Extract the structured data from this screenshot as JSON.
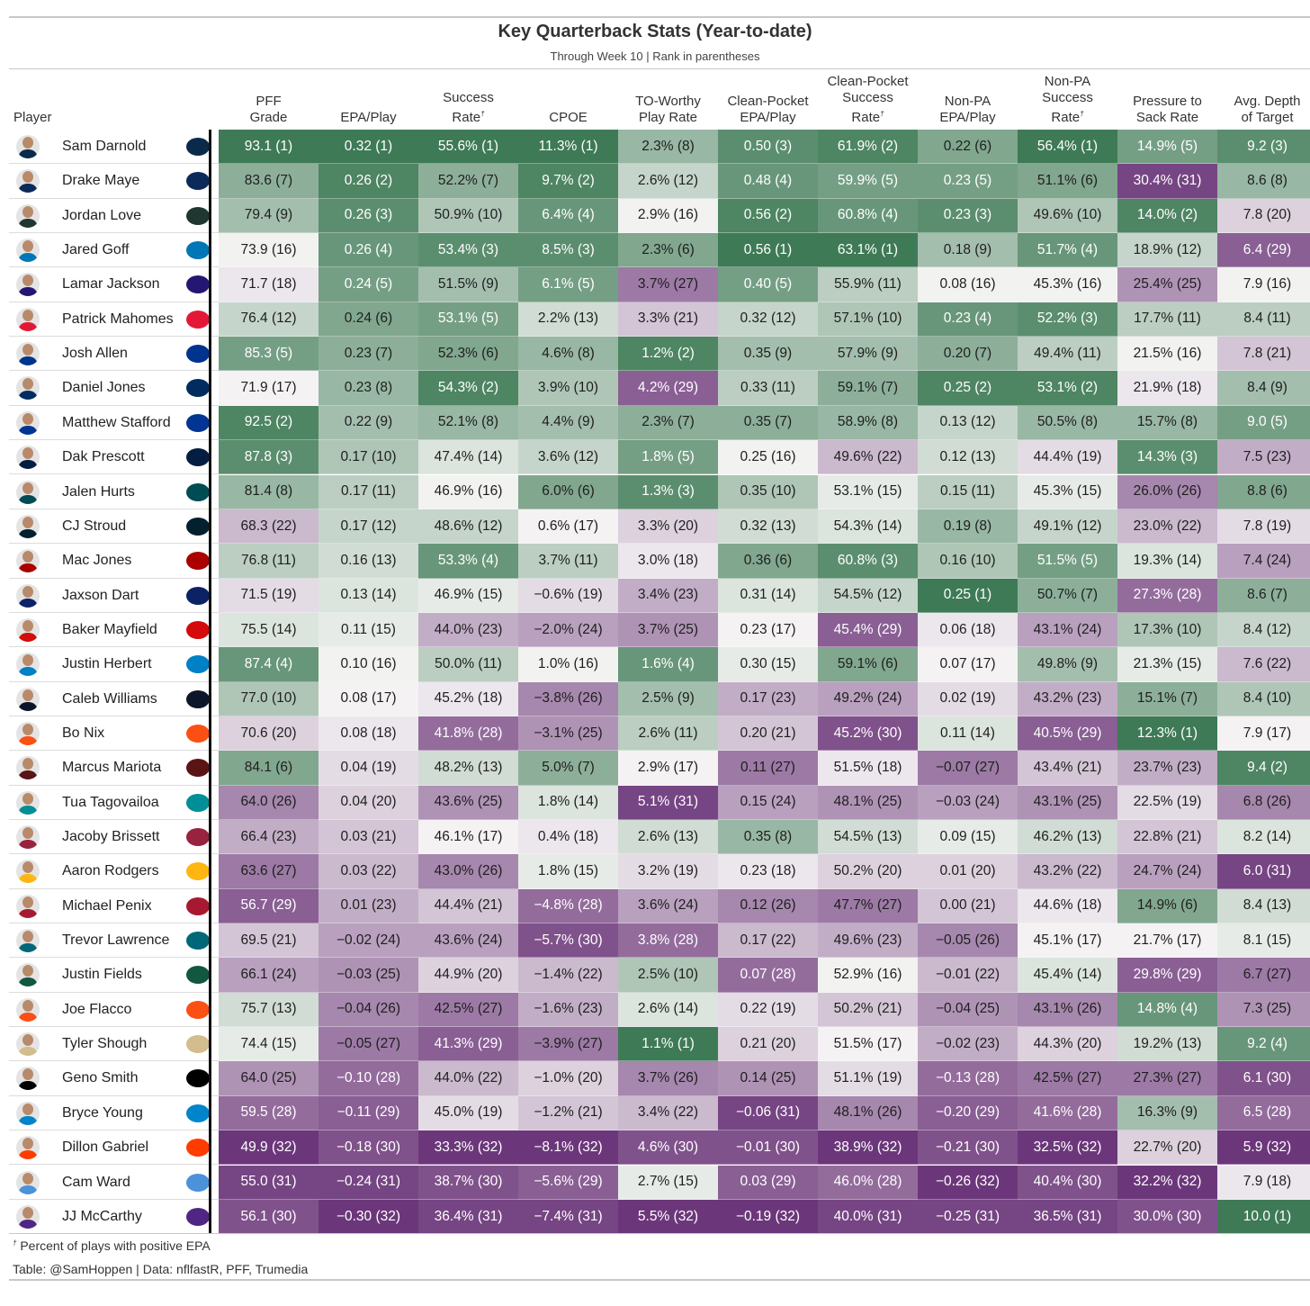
{
  "title": "Key Quarterback Stats (Year-to-date)",
  "subtitle": "Through Week 10 | Rank in parentheses",
  "footnote_mark": "†",
  "footnote": "Percent of plays with positive EPA",
  "credit": "Table: @SamHoppen | Data: nflfastR, PFF, Trumedia",
  "columns": [
    {
      "lines": [
        "Player"
      ],
      "dagger": false
    },
    {
      "lines": [
        "PFF",
        "Grade"
      ],
      "dagger": false
    },
    {
      "lines": [
        "EPA/Play"
      ],
      "dagger": false
    },
    {
      "lines": [
        "Success",
        "Rate"
      ],
      "dagger": true
    },
    {
      "lines": [
        "CPOE"
      ],
      "dagger": false
    },
    {
      "lines": [
        "TO-Worthy",
        "Play Rate"
      ],
      "dagger": false
    },
    {
      "lines": [
        "Clean-Pocket",
        "EPA/Play"
      ],
      "dagger": false
    },
    {
      "lines": [
        "Clean-Pocket",
        "Success",
        "Rate"
      ],
      "dagger": true
    },
    {
      "lines": [
        "Non-PA",
        "EPA/Play"
      ],
      "dagger": false
    },
    {
      "lines": [
        "Non-PA",
        "Success",
        "Rate"
      ],
      "dagger": true
    },
    {
      "lines": [
        "Pressure to",
        "Sack Rate"
      ],
      "dagger": false
    },
    {
      "lines": [
        "Avg. Depth",
        "of Target"
      ],
      "dagger": false
    }
  ],
  "chart_data": {
    "type": "table",
    "rank_note": "lower rank number = better; cell color green (good) to purple (bad)",
    "rows": [
      {
        "player": "Sam Darnold",
        "team_color": "#0b2a4a",
        "values": [
          "93.1 (1)",
          "0.32 (1)",
          "55.6% (1)",
          "11.3% (1)",
          "2.3% (8)",
          "0.50 (3)",
          "61.9% (2)",
          "0.22 (6)",
          "56.4% (1)",
          "14.9% (5)",
          "9.2 (3)"
        ]
      },
      {
        "player": "Drake Maye",
        "team_color": "#0b2a5a",
        "values": [
          "83.6 (7)",
          "0.26 (2)",
          "52.2% (7)",
          "9.7% (2)",
          "2.6% (12)",
          "0.48 (4)",
          "59.9% (5)",
          "0.23 (5)",
          "51.1% (6)",
          "30.4% (31)",
          "8.6 (8)"
        ]
      },
      {
        "player": "Jordan Love",
        "team_color": "#203731",
        "values": [
          "79.4 (9)",
          "0.26 (3)",
          "50.9% (10)",
          "6.4% (4)",
          "2.9% (16)",
          "0.56 (2)",
          "60.8% (4)",
          "0.23 (3)",
          "49.6% (10)",
          "14.0% (2)",
          "7.8 (20)"
        ]
      },
      {
        "player": "Jared Goff",
        "team_color": "#0076b6",
        "values": [
          "73.9 (16)",
          "0.26 (4)",
          "53.4% (3)",
          "8.5% (3)",
          "2.3% (6)",
          "0.56 (1)",
          "63.1% (1)",
          "0.18 (9)",
          "51.7% (4)",
          "18.9% (12)",
          "6.4 (29)"
        ]
      },
      {
        "player": "Lamar Jackson",
        "team_color": "#241773",
        "values": [
          "71.7 (18)",
          "0.24 (5)",
          "51.5% (9)",
          "6.1% (5)",
          "3.7% (27)",
          "0.40 (5)",
          "55.9% (11)",
          "0.08 (16)",
          "45.3% (16)",
          "25.4% (25)",
          "7.9 (16)"
        ]
      },
      {
        "player": "Patrick Mahomes",
        "team_color": "#e31837",
        "values": [
          "76.4 (12)",
          "0.24 (6)",
          "53.1% (5)",
          "2.2% (13)",
          "3.3% (21)",
          "0.32 (12)",
          "57.1% (10)",
          "0.23 (4)",
          "52.2% (3)",
          "17.7% (11)",
          "8.4 (11)"
        ]
      },
      {
        "player": "Josh Allen",
        "team_color": "#00338d",
        "values": [
          "85.3 (5)",
          "0.23 (7)",
          "52.3% (6)",
          "4.6% (8)",
          "1.2% (2)",
          "0.35 (9)",
          "57.9% (9)",
          "0.20 (7)",
          "49.4% (11)",
          "21.5% (16)",
          "7.8 (21)"
        ]
      },
      {
        "player": "Daniel Jones",
        "team_color": "#002c5f",
        "values": [
          "71.9 (17)",
          "0.23 (8)",
          "54.3% (2)",
          "3.9% (10)",
          "4.2% (29)",
          "0.33 (11)",
          "59.1% (7)",
          "0.25 (2)",
          "53.1% (2)",
          "21.9% (18)",
          "8.4 (9)"
        ]
      },
      {
        "player": "Matthew Stafford",
        "team_color": "#003594",
        "values": [
          "92.5 (2)",
          "0.22 (9)",
          "52.1% (8)",
          "4.4% (9)",
          "2.3% (7)",
          "0.35 (7)",
          "58.9% (8)",
          "0.13 (12)",
          "50.5% (8)",
          "15.7% (8)",
          "9.0 (5)"
        ]
      },
      {
        "player": "Dak Prescott",
        "team_color": "#041e42",
        "values": [
          "87.8 (3)",
          "0.17 (10)",
          "47.4% (14)",
          "3.6% (12)",
          "1.8% (5)",
          "0.25 (16)",
          "49.6% (22)",
          "0.12 (13)",
          "44.4% (19)",
          "14.3% (3)",
          "7.5 (23)"
        ]
      },
      {
        "player": "Jalen Hurts",
        "team_color": "#004c54",
        "values": [
          "81.4 (8)",
          "0.17 (11)",
          "46.9% (16)",
          "6.0% (6)",
          "1.3% (3)",
          "0.35 (10)",
          "53.1% (15)",
          "0.15 (11)",
          "45.3% (15)",
          "26.0% (26)",
          "8.8 (6)"
        ]
      },
      {
        "player": "CJ Stroud",
        "team_color": "#03202f",
        "values": [
          "68.3 (22)",
          "0.17 (12)",
          "48.6% (12)",
          "0.6% (17)",
          "3.3% (20)",
          "0.32 (13)",
          "54.3% (14)",
          "0.19 (8)",
          "49.1% (12)",
          "23.0% (22)",
          "7.8 (19)"
        ]
      },
      {
        "player": "Mac Jones",
        "team_color": "#aa0000",
        "values": [
          "76.8 (11)",
          "0.16 (13)",
          "53.3% (4)",
          "3.7% (11)",
          "3.0% (18)",
          "0.36 (6)",
          "60.8% (3)",
          "0.16 (10)",
          "51.5% (5)",
          "19.3% (14)",
          "7.4 (24)"
        ]
      },
      {
        "player": "Jaxson Dart",
        "team_color": "#0b2265",
        "values": [
          "71.5 (19)",
          "0.13 (14)",
          "46.9% (15)",
          "−0.6% (19)",
          "3.4% (23)",
          "0.31 (14)",
          "54.5% (12)",
          "0.25 (1)",
          "50.7% (7)",
          "27.3% (28)",
          "8.6 (7)"
        ]
      },
      {
        "player": "Baker Mayfield",
        "team_color": "#d50a0a",
        "values": [
          "75.5 (14)",
          "0.11 (15)",
          "44.0% (23)",
          "−2.0% (24)",
          "3.7% (25)",
          "0.23 (17)",
          "45.4% (29)",
          "0.06 (18)",
          "43.1% (24)",
          "17.3% (10)",
          "8.4 (12)"
        ]
      },
      {
        "player": "Justin Herbert",
        "team_color": "#0080c6",
        "values": [
          "87.4 (4)",
          "0.10 (16)",
          "50.0% (11)",
          "1.0% (16)",
          "1.6% (4)",
          "0.30 (15)",
          "59.1% (6)",
          "0.07 (17)",
          "49.8% (9)",
          "21.3% (15)",
          "7.6 (22)"
        ]
      },
      {
        "player": "Caleb Williams",
        "team_color": "#0b162a",
        "values": [
          "77.0 (10)",
          "0.08 (17)",
          "45.2% (18)",
          "−3.8% (26)",
          "2.5% (9)",
          "0.17 (23)",
          "49.2% (24)",
          "0.02 (19)",
          "43.2% (23)",
          "15.1% (7)",
          "8.4 (10)"
        ]
      },
      {
        "player": "Bo Nix",
        "team_color": "#fb4f14",
        "values": [
          "70.6 (20)",
          "0.08 (18)",
          "41.8% (28)",
          "−3.1% (25)",
          "2.6% (11)",
          "0.20 (21)",
          "45.2% (30)",
          "0.11 (14)",
          "40.5% (29)",
          "12.3% (1)",
          "7.9 (17)"
        ]
      },
      {
        "player": "Marcus Mariota",
        "team_color": "#5a1414",
        "values": [
          "84.1 (6)",
          "0.04 (19)",
          "48.2% (13)",
          "5.0% (7)",
          "2.9% (17)",
          "0.11 (27)",
          "51.5% (18)",
          "−0.07 (27)",
          "43.4% (21)",
          "23.7% (23)",
          "9.4 (2)"
        ]
      },
      {
        "player": "Tua Tagovailoa",
        "team_color": "#008e97",
        "values": [
          "64.0 (26)",
          "0.04 (20)",
          "43.6% (25)",
          "1.8% (14)",
          "5.1% (31)",
          "0.15 (24)",
          "48.1% (25)",
          "−0.03 (24)",
          "43.1% (25)",
          "22.5% (19)",
          "6.8 (26)"
        ]
      },
      {
        "player": "Jacoby Brissett",
        "team_color": "#97233f",
        "values": [
          "66.4 (23)",
          "0.03 (21)",
          "46.1% (17)",
          "0.4% (18)",
          "2.6% (13)",
          "0.35 (8)",
          "54.5% (13)",
          "0.09 (15)",
          "46.2% (13)",
          "22.8% (21)",
          "8.2 (14)"
        ]
      },
      {
        "player": "Aaron Rodgers",
        "team_color": "#ffb612",
        "values": [
          "63.6 (27)",
          "0.03 (22)",
          "43.0% (26)",
          "1.8% (15)",
          "3.2% (19)",
          "0.23 (18)",
          "50.2% (20)",
          "0.01 (20)",
          "43.2% (22)",
          "24.7% (24)",
          "6.0 (31)"
        ]
      },
      {
        "player": "Michael Penix",
        "team_color": "#a71930",
        "values": [
          "56.7 (29)",
          "0.01 (23)",
          "44.4% (21)",
          "−4.8% (28)",
          "3.6% (24)",
          "0.12 (26)",
          "47.7% (27)",
          "0.00 (21)",
          "44.6% (18)",
          "14.9% (6)",
          "8.4 (13)"
        ]
      },
      {
        "player": "Trevor Lawrence",
        "team_color": "#006778",
        "values": [
          "69.5 (21)",
          "−0.02 (24)",
          "43.6% (24)",
          "−5.7% (30)",
          "3.8% (28)",
          "0.17 (22)",
          "49.6% (23)",
          "−0.05 (26)",
          "45.1% (17)",
          "21.7% (17)",
          "8.1 (15)"
        ]
      },
      {
        "player": "Justin Fields",
        "team_color": "#125740",
        "values": [
          "66.1 (24)",
          "−0.03 (25)",
          "44.9% (20)",
          "−1.4% (22)",
          "2.5% (10)",
          "0.07 (28)",
          "52.9% (16)",
          "−0.01 (22)",
          "45.4% (14)",
          "29.8% (29)",
          "6.7 (27)"
        ]
      },
      {
        "player": "Joe Flacco",
        "team_color": "#fb4f14",
        "values": [
          "75.7 (13)",
          "−0.04 (26)",
          "42.5% (27)",
          "−1.6% (23)",
          "2.6% (14)",
          "0.22 (19)",
          "50.2% (21)",
          "−0.04 (25)",
          "43.1% (26)",
          "14.8% (4)",
          "7.3 (25)"
        ]
      },
      {
        "player": "Tyler Shough",
        "team_color": "#d3bc8d",
        "values": [
          "74.4 (15)",
          "−0.05 (27)",
          "41.3% (29)",
          "−3.9% (27)",
          "1.1% (1)",
          "0.21 (20)",
          "51.5% (17)",
          "−0.02 (23)",
          "44.3% (20)",
          "19.2% (13)",
          "9.2 (4)"
        ]
      },
      {
        "player": "Geno Smith",
        "team_color": "#000000",
        "values": [
          "64.0 (25)",
          "−0.10 (28)",
          "44.0% (22)",
          "−1.0% (20)",
          "3.7% (26)",
          "0.14 (25)",
          "51.1% (19)",
          "−0.13 (28)",
          "42.5% (27)",
          "27.3% (27)",
          "6.1 (30)"
        ]
      },
      {
        "player": "Bryce Young",
        "team_color": "#0085ca",
        "values": [
          "59.5 (28)",
          "−0.11 (29)",
          "45.0% (19)",
          "−1.2% (21)",
          "3.4% (22)",
          "−0.06 (31)",
          "48.1% (26)",
          "−0.20 (29)",
          "41.6% (28)",
          "16.3% (9)",
          "6.5 (28)"
        ]
      },
      {
        "player": "Dillon Gabriel",
        "team_color": "#ff3c00",
        "values": [
          "49.9 (32)",
          "−0.18 (30)",
          "33.3% (32)",
          "−8.1% (32)",
          "4.6% (30)",
          "−0.01 (30)",
          "38.9% (32)",
          "−0.21 (30)",
          "32.5% (32)",
          "22.7% (20)",
          "5.9 (32)"
        ]
      },
      {
        "player": "Cam Ward",
        "team_color": "#4b92db",
        "values": [
          "55.0 (31)",
          "−0.24 (31)",
          "38.7% (30)",
          "−5.6% (29)",
          "2.7% (15)",
          "0.03 (29)",
          "46.0% (28)",
          "−0.26 (32)",
          "40.4% (30)",
          "32.2% (32)",
          "7.9 (18)"
        ]
      },
      {
        "player": "JJ McCarthy",
        "team_color": "#4f2683",
        "values": [
          "56.1 (30)",
          "−0.30 (32)",
          "36.4% (31)",
          "−7.4% (31)",
          "5.5% (32)",
          "−0.19 (32)",
          "40.0% (31)",
          "−0.25 (31)",
          "36.5% (31)",
          "30.0% (30)",
          "10.0 (1)"
        ]
      }
    ]
  }
}
